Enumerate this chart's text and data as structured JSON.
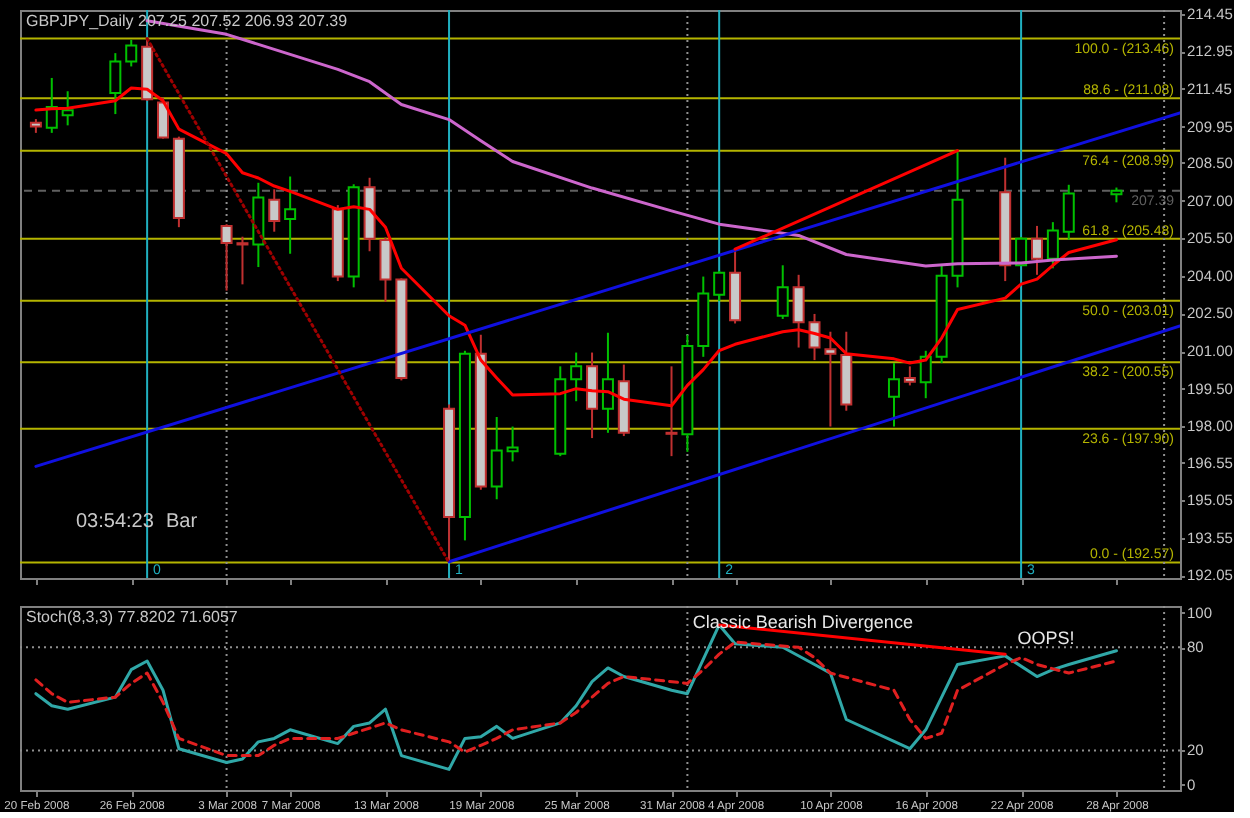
{
  "chart_data": [
    {
      "type": "candlestick",
      "title": "GBPJPY_Daily 207.25 207.52 206.93 207.39",
      "annotations": [
        "03:54:23",
        "Bar"
      ],
      "x": [
        "2008-02-20",
        "2008-02-21",
        "2008-02-22",
        "2008-02-25",
        "2008-02-26",
        "2008-02-27",
        "2008-02-28",
        "2008-02-29",
        "2008-03-03",
        "2008-03-04",
        "2008-03-05",
        "2008-03-06",
        "2008-03-07",
        "2008-03-10",
        "2008-03-11",
        "2008-03-12",
        "2008-03-13",
        "2008-03-14",
        "2008-03-17",
        "2008-03-18",
        "2008-03-19",
        "2008-03-20",
        "2008-03-21",
        "2008-03-24",
        "2008-03-25",
        "2008-03-26",
        "2008-03-27",
        "2008-03-28",
        "2008-03-31",
        "2008-04-01",
        "2008-04-02",
        "2008-04-03",
        "2008-04-04",
        "2008-04-07",
        "2008-04-08",
        "2008-04-09",
        "2008-04-10",
        "2008-04-11",
        "2008-04-14",
        "2008-04-15",
        "2008-04-16",
        "2008-04-17",
        "2008-04-18",
        "2008-04-21",
        "2008-04-22",
        "2008-04-23",
        "2008-04-24",
        "2008-04-25",
        "2008-04-28"
      ],
      "ohlc": [
        [
          210.1,
          210.25,
          209.7,
          209.95
        ],
        [
          209.9,
          211.89,
          209.7,
          210.73
        ],
        [
          210.4,
          211.36,
          210.0,
          210.6
        ],
        [
          211.29,
          212.88,
          210.45,
          212.55
        ],
        [
          212.55,
          213.41,
          212.35,
          213.18
        ],
        [
          213.13,
          213.46,
          210.98,
          211.04
        ],
        [
          210.91,
          211.11,
          209.47,
          209.52
        ],
        [
          209.47,
          209.55,
          205.94,
          206.31
        ],
        [
          205.99,
          206.06,
          203.41,
          205.31
        ],
        [
          205.3,
          205.56,
          203.66,
          205.25
        ],
        [
          205.25,
          207.71,
          204.35,
          207.12
        ],
        [
          207.03,
          207.45,
          205.76,
          206.19
        ],
        [
          206.27,
          207.96,
          204.88,
          206.65
        ],
        [
          206.65,
          206.82,
          203.79,
          203.97
        ],
        [
          203.97,
          207.65,
          203.54,
          207.53
        ],
        [
          207.53,
          207.91,
          204.98,
          205.48
        ],
        [
          205.43,
          205.53,
          202.96,
          203.85
        ],
        [
          203.85,
          203.9,
          199.83,
          199.93
        ],
        [
          198.7,
          198.87,
          192.57,
          194.38
        ],
        [
          194.38,
          201.01,
          193.45,
          200.89
        ],
        [
          200.89,
          201.65,
          195.47,
          195.6
        ],
        [
          195.6,
          198.37,
          195.09,
          197.03
        ],
        [
          197.0,
          197.99,
          196.6,
          197.15
        ],
        [
          196.9,
          200.39,
          196.81,
          199.88
        ],
        [
          199.88,
          200.94,
          199.0,
          200.39
        ],
        [
          200.39,
          200.94,
          197.53,
          198.7
        ],
        [
          198.7,
          201.73,
          197.74,
          199.88
        ],
        [
          199.8,
          200.46,
          197.61,
          197.74
        ],
        [
          197.74,
          200.39,
          196.81,
          197.7
        ],
        [
          197.68,
          201.65,
          196.98,
          201.2
        ],
        [
          201.2,
          203.97,
          200.77,
          203.29
        ],
        [
          203.25,
          204.2,
          203.0,
          204.12
        ],
        [
          204.12,
          205.06,
          202.1,
          202.23
        ],
        [
          202.41,
          204.42,
          202.28,
          203.54
        ],
        [
          203.54,
          204.04,
          201.14,
          202.15
        ],
        [
          202.15,
          202.48,
          200.64,
          201.14
        ],
        [
          201.07,
          201.77,
          197.99,
          200.89
        ],
        [
          200.84,
          201.77,
          198.62,
          198.87
        ],
        [
          199.18,
          200.52,
          197.99,
          199.88
        ],
        [
          199.93,
          200.39,
          199.63,
          199.78
        ],
        [
          199.76,
          201.01,
          199.12,
          200.77
        ],
        [
          200.77,
          204.42,
          200.52,
          204.0
        ],
        [
          204.0,
          208.99,
          203.54,
          207.03
        ],
        [
          207.33,
          208.71,
          203.79,
          204.42
        ],
        [
          204.42,
          205.55,
          204.4,
          205.48
        ],
        [
          205.48,
          205.99,
          204.04,
          204.68
        ],
        [
          204.68,
          206.14,
          204.3,
          205.81
        ],
        [
          205.76,
          207.63,
          205.44,
          207.28
        ],
        [
          207.25,
          207.52,
          206.93,
          207.39
        ]
      ],
      "colors": [
        "#c03030",
        "#00c000",
        "#00c000",
        "#00c000",
        "#00c000",
        "#c03030",
        "#c03030",
        "#c03030",
        "#c03030",
        "#c03030",
        "#00c000",
        "#c03030",
        "#00c000",
        "#c03030",
        "#00c000",
        "#c03030",
        "#c03030",
        "#c03030",
        "#c03030",
        "#00c000",
        "#c03030",
        "#00c000",
        "#00c000",
        "#00c000",
        "#00c000",
        "#c03030",
        "#00c000",
        "#c03030",
        "#c03030",
        "#00c000",
        "#00c000",
        "#00c000",
        "#c03030",
        "#00c000",
        "#c03030",
        "#c03030",
        "#c03030",
        "#c03030",
        "#00c000",
        "#c03030",
        "#00c000",
        "#00c000",
        "#00c000",
        "#c03030",
        "#00c000",
        "#c03030",
        "#00c000",
        "#00c000",
        "#00c000"
      ],
      "series": [
        {
          "type": "line",
          "color": "#ff0000",
          "line_style": "solid",
          "values": [
            210.61,
            210.66,
            210.68,
            210.98,
            211.49,
            211.44,
            210.98,
            209.85,
            208.87,
            208.11,
            207.9,
            207.58,
            207.37,
            206.65,
            206.75,
            206.65,
            205.94,
            204.3,
            202.41,
            202.03,
            200.64,
            199.93,
            199.25,
            199.3,
            199.5,
            199.42,
            199.38,
            199.08,
            198.82,
            199.63,
            200.26,
            201.02,
            201.27,
            201.77,
            201.85,
            201.7,
            201.52,
            200.89,
            200.69,
            200.52,
            200.64,
            201.52,
            202.66,
            203.11,
            203.67,
            203.87,
            204.42,
            204.93,
            205.44
          ]
        },
        {
          "type": "line",
          "color": "#cc66cc",
          "line_style": "solid",
          "x": [
            "2008-02-27",
            "2008-03-03",
            "2008-03-10",
            "2008-03-12",
            "2008-03-14",
            "2008-03-17",
            "2008-03-19",
            "2008-03-21",
            "2008-03-26",
            "2008-03-31",
            "2008-04-03",
            "2008-04-08",
            "2008-04-11",
            "2008-04-16",
            "2008-04-18",
            "2008-04-22",
            "2008-04-24",
            "2008-04-28"
          ],
          "values": [
            214.17,
            213.63,
            212.23,
            211.74,
            210.83,
            210.23,
            209.39,
            208.56,
            207.5,
            206.59,
            206.06,
            205.61,
            204.85,
            204.39,
            204.48,
            204.51,
            204.63,
            204.78
          ]
        },
        {
          "type": "line",
          "color": "#1010e0",
          "line_style": "solid",
          "x": [
            "2008-02-20",
            "2008-05-02"
          ],
          "values": [
            196.4,
            210.5
          ]
        },
        {
          "type": "line",
          "color": "#1010e0",
          "line_style": "solid",
          "x": [
            "2008-03-17",
            "2008-05-02"
          ],
          "values": [
            192.6,
            202.0
          ]
        },
        {
          "type": "line",
          "color": "#a00000",
          "line_style": "dotted",
          "x": [
            "2008-02-27",
            "2008-03-17"
          ],
          "values": [
            213.46,
            192.57
          ]
        },
        {
          "type": "line",
          "color": "#ff0000",
          "line_style": "solid",
          "x": [
            "2008-04-04",
            "2008-04-18"
          ],
          "values": [
            205.06,
            208.99
          ]
        }
      ],
      "ref_lines": [
        {
          "axis": "y",
          "value": 213.46,
          "label": "100.0 - (213.46)",
          "color": "#b4b400",
          "line_style": "solid"
        },
        {
          "axis": "y",
          "value": 211.08,
          "label": "88.6 - (211.08)",
          "color": "#b4b400",
          "line_style": "solid"
        },
        {
          "axis": "y",
          "value": 208.99,
          "label": "76.4 - (208.99)",
          "color": "#b4b400",
          "line_style": "solid"
        },
        {
          "axis": "y",
          "value": 205.48,
          "label": "61.8 - (205.48)",
          "color": "#b4b400",
          "line_style": "solid"
        },
        {
          "axis": "y",
          "value": 203.01,
          "label": "50.0 - (203.01)",
          "color": "#b4b400",
          "line_style": "solid"
        },
        {
          "axis": "y",
          "value": 200.55,
          "label": "38.2 - (200.55)",
          "color": "#b4b400",
          "line_style": "solid"
        },
        {
          "axis": "y",
          "value": 197.9,
          "label": "23.6 - (197.90)",
          "color": "#b4b400",
          "line_style": "solid"
        },
        {
          "axis": "y",
          "value": 192.57,
          "label": "0.0 - (192.57)",
          "color": "#b4b400",
          "line_style": "solid"
        },
        {
          "axis": "y",
          "value": 207.39,
          "label": "207.39",
          "color": "#606060",
          "line_style": "dashed"
        },
        {
          "axis": "x",
          "value": "2008-03-03",
          "color": "#909090",
          "line_style": "dotted"
        },
        {
          "axis": "x",
          "value": "2008-04-01",
          "color": "#909090",
          "line_style": "dotted"
        },
        {
          "axis": "x",
          "value": "2008-05-01",
          "color": "#909090",
          "line_style": "dotted"
        },
        {
          "axis": "x",
          "value": "2008-02-27",
          "label": "0",
          "color": "#20b0c0",
          "line_style": "solid"
        },
        {
          "axis": "x",
          "value": "2008-03-17",
          "label": "1",
          "color": "#20b0c0",
          "line_style": "solid"
        },
        {
          "axis": "x",
          "value": "2008-04-03",
          "label": "2",
          "color": "#20b0c0",
          "line_style": "solid"
        },
        {
          "axis": "x",
          "value": "2008-04-22",
          "label": "3",
          "color": "#20b0c0",
          "line_style": "solid"
        }
      ],
      "xlim": [
        "2008-02-19",
        "2008-05-02"
      ],
      "xticks": [
        {
          "value": "2008-02-20",
          "label": null
        },
        {
          "value": "2008-02-26",
          "label": null
        },
        {
          "value": "2008-03-03",
          "label": null
        },
        {
          "value": "2008-03-07",
          "label": null
        },
        {
          "value": "2008-03-13",
          "label": null
        },
        {
          "value": "2008-03-19",
          "label": null
        },
        {
          "value": "2008-03-25",
          "label": null
        },
        {
          "value": "2008-03-31",
          "label": null
        },
        {
          "value": "2008-04-04",
          "label": null
        },
        {
          "value": "2008-04-10",
          "label": null
        },
        {
          "value": "2008-04-16",
          "label": null
        },
        {
          "value": "2008-04-22",
          "label": null
        },
        {
          "value": "2008-04-28",
          "label": null
        }
      ],
      "ylim": [
        191.95,
        214.6
      ],
      "yticks": [
        214.45,
        212.95,
        211.45,
        209.95,
        {
          "value": 208.5,
          "label": "208.50"
        },
        {
          "value": 207,
          "label": "207.00"
        },
        {
          "value": 205.5,
          "label": "205.50"
        },
        {
          "value": 204,
          "label": "204.00"
        },
        {
          "value": 202.5,
          "label": "202.50"
        },
        {
          "value": 201,
          "label": "201.00"
        },
        {
          "value": 199.5,
          "label": "199.50"
        },
        {
          "value": 198,
          "label": "198.00"
        },
        196.55,
        195.05,
        193.55,
        192.05
      ],
      "tick_labels": "y",
      "grid": false
    },
    {
      "type": "line",
      "title": "Stoch(8,3,3) 77.8202 71.6057",
      "annotations": [
        "Classic Bearish Divergence",
        "OOPS!"
      ],
      "series": [
        {
          "type": "line",
          "color": "#30a8a8",
          "line_style": "solid",
          "x": [
            "2008-02-20",
            "2008-02-21",
            "2008-02-22",
            "2008-02-25",
            "2008-02-26",
            "2008-02-27",
            "2008-02-28",
            "2008-02-29",
            "2008-03-03",
            "2008-03-04",
            "2008-03-05",
            "2008-03-06",
            "2008-03-07",
            "2008-03-10",
            "2008-03-11",
            "2008-03-12",
            "2008-03-13",
            "2008-03-14",
            "2008-03-17",
            "2008-03-18",
            "2008-03-19",
            "2008-03-20",
            "2008-03-21",
            "2008-03-24",
            "2008-03-25",
            "2008-03-26",
            "2008-03-27",
            "2008-03-28",
            "2008-03-31",
            "2008-04-01",
            "2008-04-03",
            "2008-04-04",
            "2008-04-07",
            "2008-04-09",
            "2008-04-10",
            "2008-04-11",
            "2008-04-15",
            "2008-04-16",
            "2008-04-18",
            "2008-04-21",
            "2008-04-23",
            "2008-04-24",
            "2008-04-25",
            "2008-04-28"
          ],
          "values": [
            53,
            46,
            44,
            51,
            67,
            72,
            55,
            21,
            13,
            15,
            25,
            27,
            32,
            24,
            34,
            36,
            44,
            17,
            9,
            27,
            28,
            34,
            27,
            36,
            46,
            60,
            68,
            63,
            55,
            53,
            93,
            82,
            80,
            70,
            65,
            38,
            21,
            32,
            70,
            75,
            63,
            67,
            70,
            78
          ]
        },
        {
          "type": "line",
          "color": "#e02020",
          "line_style": "dashed",
          "x": [
            "2008-02-20",
            "2008-02-21",
            "2008-02-22",
            "2008-02-25",
            "2008-02-26",
            "2008-02-27",
            "2008-02-28",
            "2008-02-29",
            "2008-03-03",
            "2008-03-05",
            "2008-03-06",
            "2008-03-07",
            "2008-03-10",
            "2008-03-11",
            "2008-03-13",
            "2008-03-14",
            "2008-03-17",
            "2008-03-18",
            "2008-03-19",
            "2008-03-20",
            "2008-03-21",
            "2008-03-24",
            "2008-03-25",
            "2008-03-26",
            "2008-03-27",
            "2008-03-28",
            "2008-04-01",
            "2008-04-02",
            "2008-04-03",
            "2008-04-04",
            "2008-04-08",
            "2008-04-09",
            "2008-04-10",
            "2008-04-14",
            "2008-04-15",
            "2008-04-16",
            "2008-04-17",
            "2008-04-18",
            "2008-04-21",
            "2008-04-22",
            "2008-04-23",
            "2008-04-25",
            "2008-04-28"
          ],
          "values": [
            61,
            53,
            48,
            51,
            59,
            65,
            48,
            27,
            17,
            17,
            23,
            27,
            27,
            30,
            36,
            32,
            25,
            19,
            23,
            27,
            32,
            36,
            42,
            51,
            59,
            63,
            59,
            67,
            76,
            83,
            80,
            74,
            65,
            55,
            38,
            27,
            30,
            55,
            70,
            74,
            70,
            65,
            72
          ]
        },
        {
          "type": "line",
          "color": "#ff0000",
          "line_style": "solid",
          "x": [
            "2008-04-03",
            "2008-04-21"
          ],
          "values": [
            93,
            76
          ]
        }
      ],
      "ref_lines": [
        {
          "axis": "y",
          "value": 80,
          "color": "#909090",
          "line_style": "dotted"
        },
        {
          "axis": "y",
          "value": 20,
          "color": "#909090",
          "line_style": "dotted"
        },
        {
          "axis": "x",
          "value": "2008-03-03",
          "color": "#909090",
          "line_style": "dotted"
        },
        {
          "axis": "x",
          "value": "2008-04-01",
          "color": "#909090",
          "line_style": "dotted"
        },
        {
          "axis": "x",
          "value": "2008-05-01",
          "color": "#909090",
          "line_style": "dotted"
        }
      ],
      "xlim": [
        "2008-02-19",
        "2008-05-02"
      ],
      "xticks": [
        {
          "value": "2008-02-20",
          "label": "20 Feb 2008"
        },
        {
          "value": "2008-02-26",
          "label": "26 Feb 2008"
        },
        {
          "value": "2008-03-03",
          "label": "3 Mar 2008"
        },
        {
          "value": "2008-03-07",
          "label": "7 Mar 2008"
        },
        {
          "value": "2008-03-13",
          "label": "13 Mar 2008"
        },
        {
          "value": "2008-03-19",
          "label": "19 Mar 2008"
        },
        {
          "value": "2008-03-25",
          "label": "25 Mar 2008"
        },
        {
          "value": "2008-03-31",
          "label": "31 Mar 2008"
        },
        {
          "value": "2008-04-04",
          "label": "4 Apr 2008"
        },
        {
          "value": "2008-04-10",
          "label": "10 Apr 2008"
        },
        {
          "value": "2008-04-16",
          "label": "16 Apr 2008"
        },
        {
          "value": "2008-04-22",
          "label": "22 Apr 2008"
        },
        {
          "value": "2008-04-28",
          "label": "28 Apr 2008"
        }
      ],
      "ylim": [
        -3,
        104
      ],
      "yticks": [
        0,
        20,
        80,
        100
      ],
      "grid": false
    }
  ]
}
